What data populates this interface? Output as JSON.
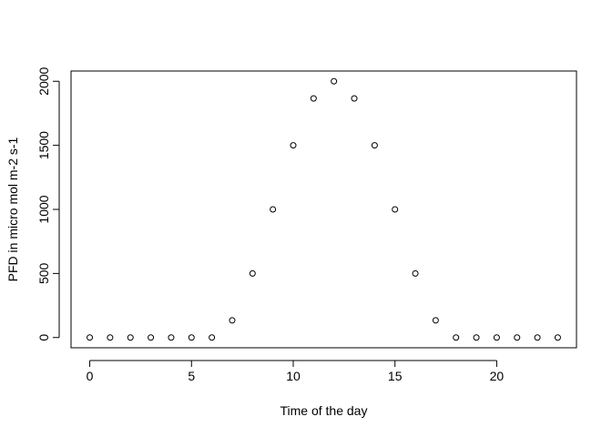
{
  "chart_data": {
    "type": "scatter",
    "title": "",
    "xlabel": "Time of the day",
    "ylabel": "PFD in micro mol m-2 s-1",
    "x": [
      0,
      1,
      2,
      3,
      4,
      5,
      6,
      7,
      8,
      9,
      10,
      11,
      12,
      13,
      14,
      15,
      16,
      17,
      18,
      19,
      20,
      21,
      22,
      23
    ],
    "y": [
      0,
      0,
      0,
      0,
      0,
      0,
      0,
      134,
      500,
      1000,
      1500,
      1866,
      2000,
      1866,
      1500,
      1000,
      500,
      134,
      0,
      0,
      0,
      0,
      0,
      0
    ],
    "xlim": [
      -0.92,
      23.92
    ],
    "ylim": [
      -80,
      2080
    ],
    "x_ticks": [
      0,
      5,
      10,
      15,
      20
    ],
    "y_ticks": [
      0,
      500,
      1000,
      1500,
      2000
    ],
    "marker": "open-circle",
    "grid": false,
    "legend": "none"
  }
}
